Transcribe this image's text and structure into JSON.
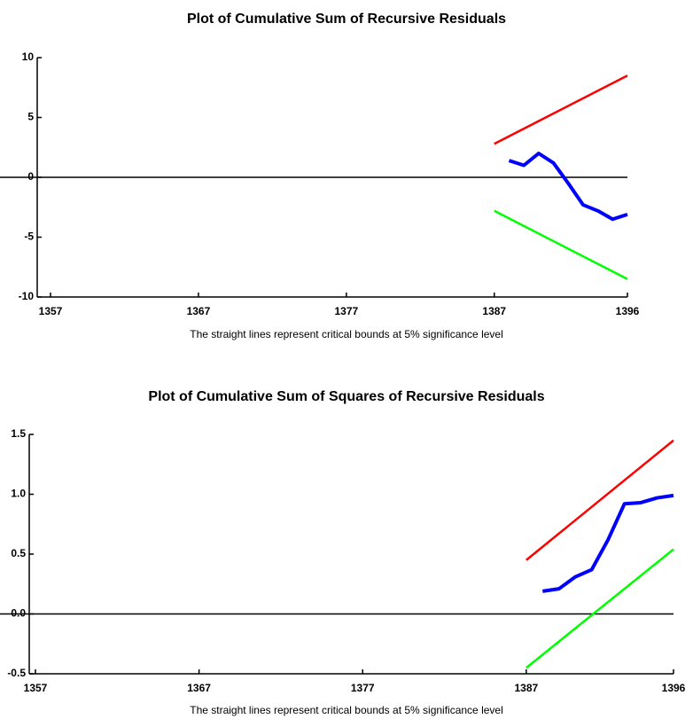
{
  "chart_data": [
    {
      "type": "line",
      "title": "Plot of Cumulative Sum of Recursive Residuals",
      "note": "The straight lines represent critical bounds at 5% significance level",
      "xlim": [
        1357,
        1396
      ],
      "xticks": [
        1357,
        1367,
        1377,
        1387,
        1396
      ],
      "ylim": [
        -10,
        10
      ],
      "yticks": [
        -10,
        -5,
        0,
        5,
        10
      ],
      "series": [
        {
          "color": "#ff0000",
          "x": [
            1387,
            1396
          ],
          "values": [
            2.8,
            8.5
          ]
        },
        {
          "color": "#0000ff",
          "x": [
            1388,
            1389,
            1390,
            1391,
            1392,
            1393,
            1394,
            1395,
            1396
          ],
          "values": [
            1.4,
            1.0,
            2.0,
            1.2,
            -0.5,
            -2.3,
            -2.8,
            -3.5,
            -3.1
          ]
        },
        {
          "color": "#00ff00",
          "x": [
            1387,
            1396
          ],
          "values": [
            -2.8,
            -8.5
          ]
        }
      ]
    },
    {
      "type": "line",
      "title": "Plot of Cumulative Sum of Squares of Recursive Residuals",
      "note": "The straight lines represent critical bounds at 5% significance level",
      "xlim": [
        1357,
        1396
      ],
      "xticks": [
        1357,
        1367,
        1377,
        1387,
        1396
      ],
      "ylim": [
        -0.5,
        1.5
      ],
      "yticks": [
        -0.5,
        {
          "value": 0,
          "label": "0.0"
        },
        0.5,
        {
          "value": 1,
          "label": "1.0"
        },
        1.5
      ],
      "series": [
        {
          "color": "#ff0000",
          "x": [
            1387,
            1396
          ],
          "values": [
            0.45,
            1.45
          ]
        },
        {
          "color": "#0000ff",
          "x": [
            1388,
            1389,
            1390,
            1391,
            1392,
            1393,
            1394,
            1395,
            1396
          ],
          "values": [
            0.19,
            0.21,
            0.31,
            0.37,
            0.62,
            0.92,
            0.93,
            0.97,
            0.99
          ]
        },
        {
          "color": "#00ff00",
          "x": [
            1387,
            1396
          ],
          "values": [
            -0.45,
            0.54
          ]
        }
      ]
    }
  ]
}
